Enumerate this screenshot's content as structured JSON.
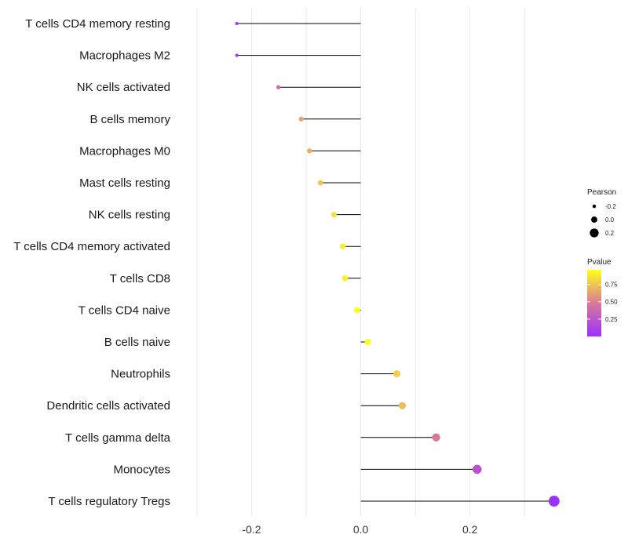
{
  "chart_data": {
    "type": "lollipop",
    "title": "",
    "xlabel": "",
    "ylabel": "",
    "xlim": [
      -0.32,
      0.37
    ],
    "xticks": [
      -0.2,
      0.0,
      0.2
    ],
    "xtick_labels": [
      "-0.2",
      "0.0",
      "0.2"
    ],
    "grid": true,
    "categories": [
      "T cells CD4 memory resting",
      "Macrophages M2",
      "NK cells activated",
      "B cells memory",
      "Macrophages M0",
      "Mast cells resting",
      "NK cells resting",
      "T cells CD4 memory activated",
      "T cells CD8",
      "T cells CD4 naive",
      "B cells naive",
      "Neutrophils",
      "Dendritic cells activated",
      "T cells gamma delta",
      "Monocytes",
      "T cells regulatory  Tregs"
    ],
    "pearson": [
      -0.227,
      -0.227,
      -0.151,
      -0.109,
      -0.094,
      -0.074,
      -0.049,
      -0.033,
      -0.029,
      -0.007,
      0.013,
      0.066,
      0.076,
      0.138,
      0.213,
      0.354
    ],
    "pvalue": [
      0.02,
      0.02,
      0.4,
      0.62,
      0.68,
      0.76,
      0.85,
      0.9,
      0.91,
      0.98,
      0.95,
      0.78,
      0.73,
      0.48,
      0.22,
      0.01
    ],
    "legend": {
      "size_title": "Pearson",
      "size_entries": [
        {
          "label": "-0.2",
          "value": -0.2
        },
        {
          "label": "0.0",
          "value": 0.0
        },
        {
          "label": "0.2",
          "value": 0.2
        }
      ],
      "color_title": "Pvalue",
      "color_range": [
        0.0,
        0.96
      ],
      "color_ticks": [
        {
          "label": "0.75",
          "value": 0.75
        },
        {
          "label": "0.50",
          "value": 0.5
        },
        {
          "label": "0.25",
          "value": 0.25
        }
      ],
      "placement": "right"
    },
    "colors": {
      "low": "#9b30ff",
      "mid": "#d9799a",
      "high": "#ffff1a",
      "stem": "#000000",
      "grid": "#ebebeb"
    }
  }
}
